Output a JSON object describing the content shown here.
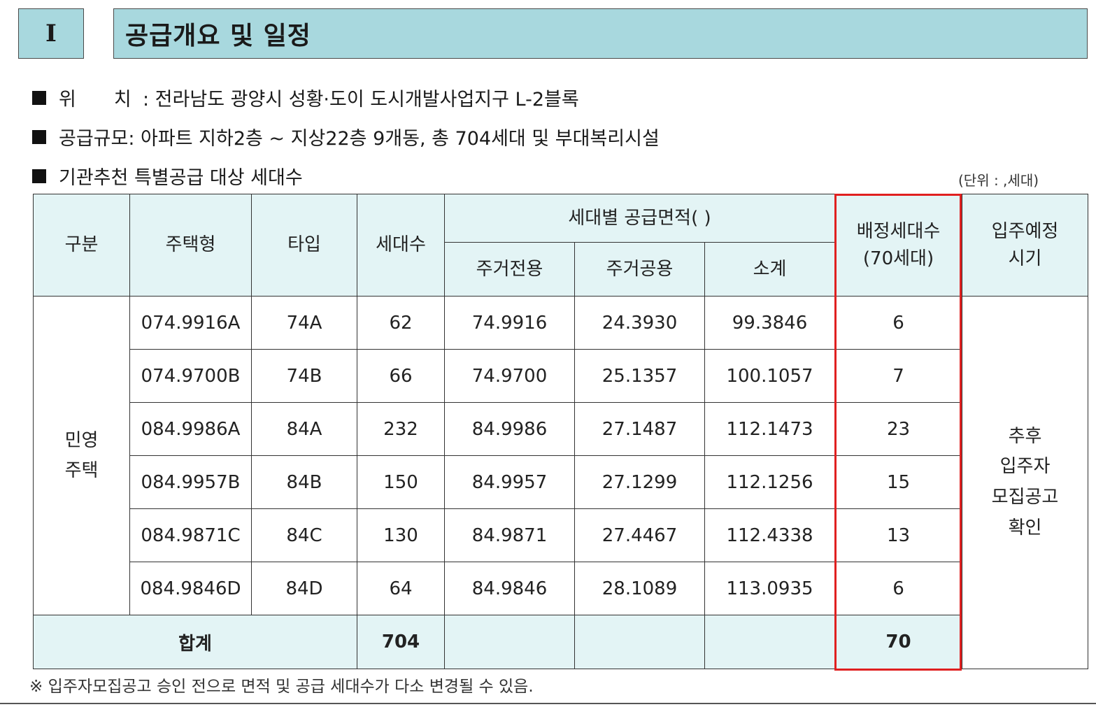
{
  "section": {
    "number": "Ⅰ",
    "title": "공급개요 및 일정"
  },
  "info": {
    "location_label_1": "위",
    "location_label_2": "치",
    "location_value": " : 전라남도 광양시 성황·도이 도시개발사업지구 L-2블록",
    "scale_label": "공급규모",
    "scale_value": " : 아파트 지하2층 ~ 지상22층 9개동, 총 704세대 및 부대복리시설",
    "special_label": "기관추천 특별공급 대상 세대수",
    "unit": "(단위 :   ,세대)"
  },
  "table": {
    "headers": {
      "gubun": "구분",
      "housing_type": "주택형",
      "type": "타입",
      "units": "세대수",
      "area_group": "세대별 공급면적( )",
      "exclusive": "주거전용",
      "common": "주거공용",
      "subtotal": "소계",
      "allocated_1": "배정세대수",
      "allocated_2": "(70세대)",
      "move_in_1": "입주예정",
      "move_in_2": "시기"
    },
    "gubun_value_1": "민영",
    "gubun_value_2": "주택",
    "move_in_value": [
      "추후",
      "입주자",
      "모집공고",
      "확인"
    ],
    "rows": [
      {
        "housing_type": "074.9916A",
        "type": "74A",
        "units": "62",
        "exclusive": "74.9916",
        "common": "24.3930",
        "subtotal": "99.3846",
        "allocated": "6"
      },
      {
        "housing_type": "074.9700B",
        "type": "74B",
        "units": "66",
        "exclusive": "74.9700",
        "common": "25.1357",
        "subtotal": "100.1057",
        "allocated": "7"
      },
      {
        "housing_type": "084.9986A",
        "type": "84A",
        "units": "232",
        "exclusive": "84.9986",
        "common": "27.1487",
        "subtotal": "112.1473",
        "allocated": "23"
      },
      {
        "housing_type": "084.9957B",
        "type": "84B",
        "units": "150",
        "exclusive": "84.9957",
        "common": "27.1299",
        "subtotal": "112.1256",
        "allocated": "15"
      },
      {
        "housing_type": "084.9871C",
        "type": "84C",
        "units": "130",
        "exclusive": "84.9871",
        "common": "27.4467",
        "subtotal": "112.4338",
        "allocated": "13"
      },
      {
        "housing_type": "084.9846D",
        "type": "84D",
        "units": "64",
        "exclusive": "84.9846",
        "common": "28.1089",
        "subtotal": "113.0935",
        "allocated": "6"
      }
    ],
    "total": {
      "label": "합계",
      "units": "704",
      "allocated": "70"
    }
  },
  "footnote": "※ 입주자모집공고 승인 전으로 면적 및 공급 세대수가 다소 변경될 수 있음.",
  "colors": {
    "header_fill": "#a8d8de",
    "table_header_fill": "#e3f4f5",
    "highlight": "#e02020"
  }
}
